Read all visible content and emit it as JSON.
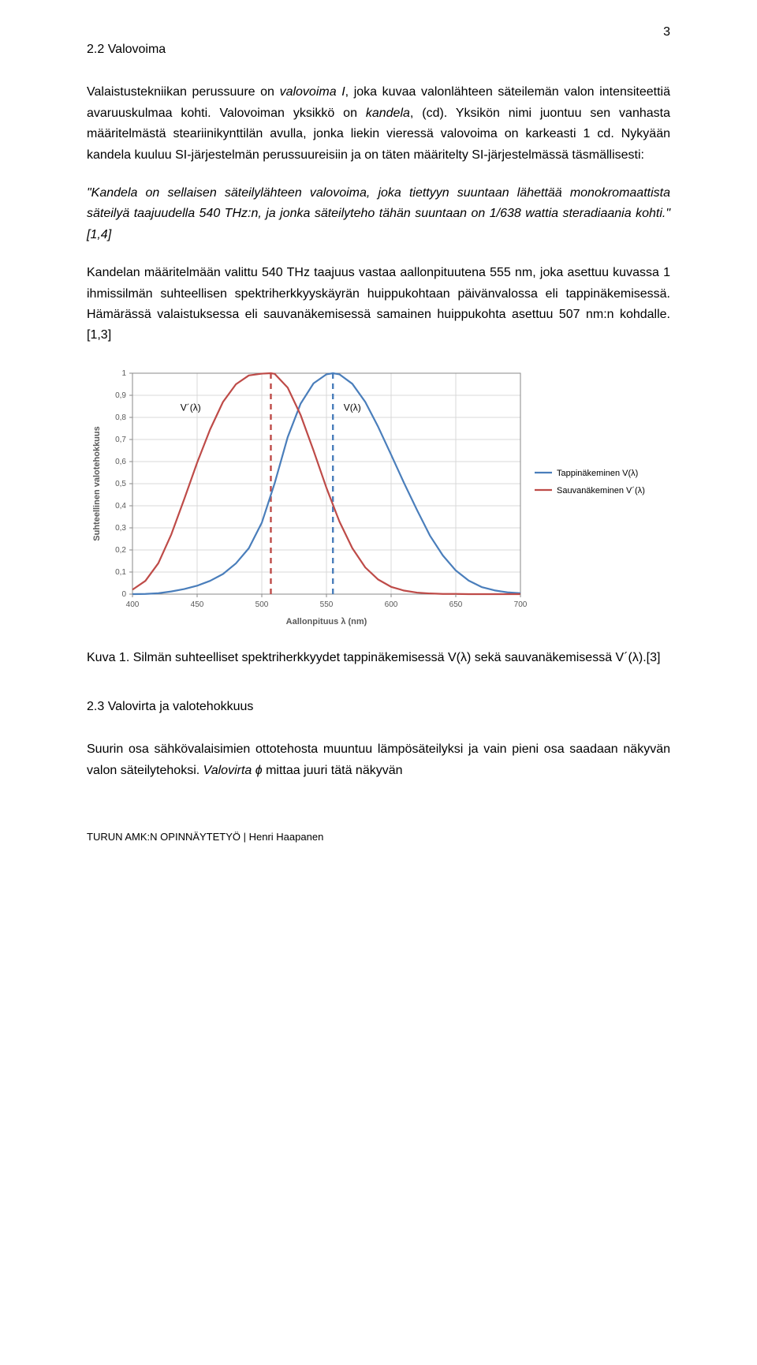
{
  "page_number": "3",
  "section1": {
    "heading": "2.2 Valovoima",
    "p1_a": "Valaistustekniikan perussuure on ",
    "p1_i1": "valovoima I",
    "p1_b": ", joka kuvaa valonlähteen säteilemän valon intensiteettiä avaruuskulmaa kohti. Valovoiman yksikkö on ",
    "p1_i2": "kandela",
    "p1_c": ", (cd). Yksikön nimi juontuu sen vanhasta määritelmästä steariinikynttilän avulla, jonka liekin vieressä valovoima on karkeasti 1 cd. Nykyään kandela kuuluu SI-järjestelmän perussuureisiin ja on täten määritelty SI-järjestelmässä täsmällisesti:",
    "quote": "\"Kandela on sellaisen säteilylähteen valovoima, joka tiettyyn suuntaan lähettää monokromaattista säteilyä taajuudella 540 THz:n, ja jonka säteilyteho tähän suuntaan on 1/638 wattia steradiaania kohti.\" [1,4]",
    "p2": "Kandelan määritelmään valittu 540 THz taajuus vastaa aallonpituutena 555 nm, joka asettuu kuvassa 1 ihmissilmän suhteellisen spektriherkkyyskäyrän huippukohtaan päivänvalossa eli tappinäkemisessä. Hämärässä valaistuksessa eli sauvanäkemisessä samainen huippukohta asettuu 507 nm:n kohdalle. [1,3]"
  },
  "chart": {
    "type": "line",
    "background_color": "#ffffff",
    "plot_bg": "#ffffff",
    "grid_color": "#d9d9d9",
    "axis_color": "#8a8a8a",
    "tick_fontsize": 10,
    "label_fontsize": 11,
    "x_label": "Aallonpituus λ (nm)",
    "y_label": "Suhteellinen valotehokkuus",
    "x_ticks": [
      400,
      450,
      500,
      550,
      600,
      650,
      700
    ],
    "y_ticks": [
      0,
      0.1,
      0.2,
      0.3,
      0.4,
      0.5,
      0.6,
      0.7,
      0.8,
      0.9,
      1
    ],
    "xlim": [
      400,
      700
    ],
    "ylim": [
      0,
      1
    ],
    "line_width": 2.2,
    "dash_width": 2.4,
    "dash_pattern": "7,6",
    "series": [
      {
        "name": "Tappinäkeminen V(λ)",
        "color": "#4a7ebb",
        "label_inplot": "V(λ)",
        "label_x": 570,
        "label_y": 0.83,
        "vline_x": 555,
        "data": {
          "x": [
            400,
            410,
            420,
            430,
            440,
            450,
            460,
            470,
            480,
            490,
            500,
            510,
            520,
            530,
            540,
            550,
            555,
            560,
            570,
            580,
            590,
            600,
            610,
            620,
            630,
            640,
            650,
            660,
            670,
            680,
            690,
            700
          ],
          "y": [
            0.0,
            0.001,
            0.004,
            0.012,
            0.023,
            0.038,
            0.06,
            0.091,
            0.139,
            0.208,
            0.323,
            0.503,
            0.71,
            0.862,
            0.954,
            0.995,
            1.0,
            0.995,
            0.952,
            0.87,
            0.757,
            0.631,
            0.503,
            0.381,
            0.265,
            0.175,
            0.107,
            0.061,
            0.032,
            0.017,
            0.008,
            0.004
          ]
        }
      },
      {
        "name": "Sauvanäkeminen V´(λ)",
        "color": "#be4b48",
        "label_inplot": "V´(λ)",
        "label_x": 445,
        "label_y": 0.83,
        "vline_x": 507,
        "data": {
          "x": [
            400,
            410,
            420,
            430,
            440,
            450,
            460,
            470,
            480,
            490,
            500,
            507,
            510,
            520,
            530,
            540,
            550,
            560,
            570,
            580,
            590,
            600,
            610,
            620,
            630,
            640,
            650,
            660,
            670,
            680,
            690,
            700
          ],
          "y": [
            0.02,
            0.06,
            0.14,
            0.27,
            0.43,
            0.595,
            0.745,
            0.87,
            0.95,
            0.99,
            0.998,
            1.0,
            0.997,
            0.935,
            0.811,
            0.65,
            0.481,
            0.329,
            0.208,
            0.121,
            0.066,
            0.033,
            0.016,
            0.007,
            0.003,
            0.001,
            0.001,
            0.0,
            0.0,
            0.0,
            0.0,
            0.0
          ]
        }
      }
    ],
    "legend": {
      "items": [
        {
          "label": "Tappinäkeminen V(λ)",
          "color": "#4a7ebb"
        },
        {
          "label": "Sauvanäkeminen V´(λ)",
          "color": "#be4b48"
        }
      ]
    }
  },
  "caption": "Kuva 1. Silmän suhteelliset spektriherkkyydet tappinäkemisessä V(λ) sekä sauvanäkemisessä V´(λ).[3]",
  "section2": {
    "heading": "2.3 Valovirta ja valotehokkuus",
    "p1_a": "Suurin osa sähkövalaisimien ottotehosta muuntuu lämpösäteilyksi ja vain pieni osa saadaan näkyvän valon säteilytehoksi. ",
    "p1_i": "Valovirta ϕ",
    "p1_b": " mittaa juuri tätä näkyvän"
  },
  "footer": "TURUN AMK:N OPINNÄYTETYÖ | Henri Haapanen"
}
